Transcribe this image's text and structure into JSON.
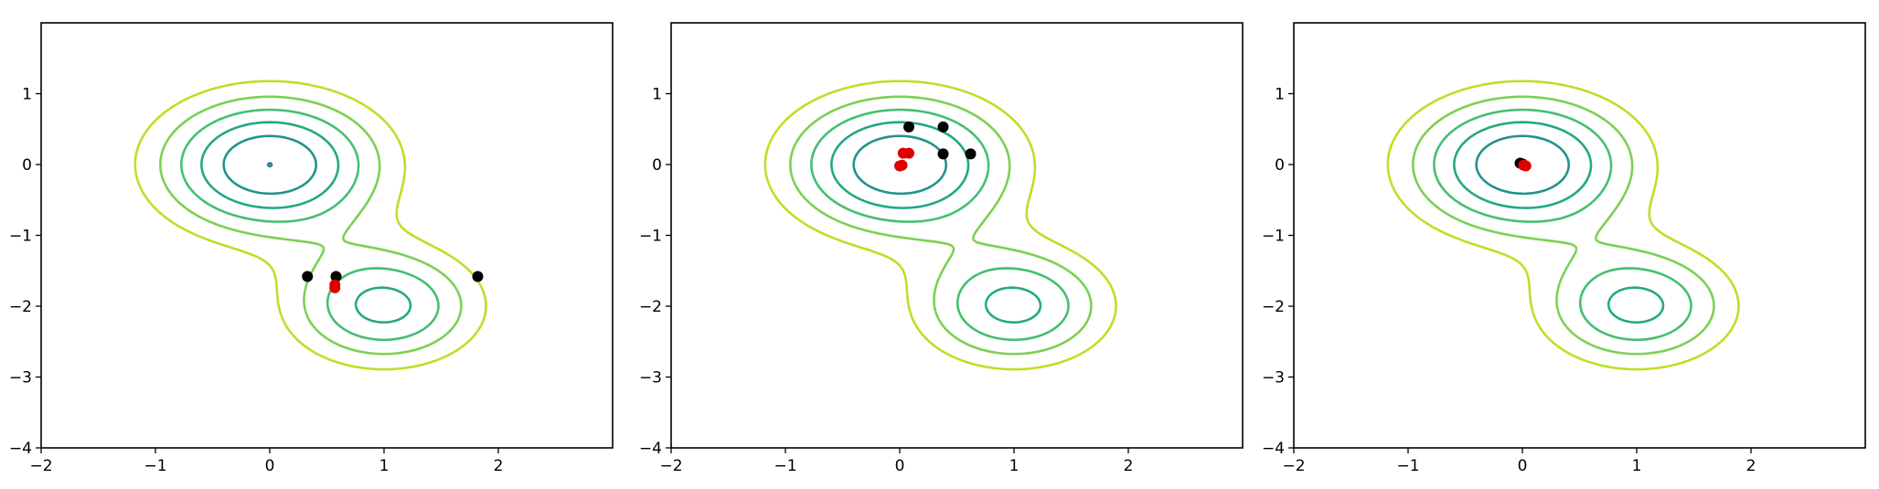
{
  "chart_data": [
    {
      "type": "contour",
      "title": "",
      "xlabel": "",
      "ylabel": "",
      "xlim": [
        -2,
        3
      ],
      "ylim": [
        -4,
        2
      ],
      "x_ticks": [
        -2,
        -1,
        0,
        1,
        2
      ],
      "y_ticks": [
        -4,
        -3,
        -2,
        -1,
        0,
        1
      ],
      "grid": false,
      "black_points": [
        [
          0.33,
          -1.58
        ],
        [
          0.58,
          -1.58
        ],
        [
          1.82,
          -1.58
        ]
      ],
      "red_points": [
        [
          0.57,
          -1.7
        ],
        [
          0.57,
          -1.74
        ]
      ]
    },
    {
      "type": "contour",
      "title": "",
      "xlabel": "",
      "ylabel": "",
      "xlim": [
        -2,
        3
      ],
      "ylim": [
        -4,
        2
      ],
      "x_ticks": [
        -2,
        -1,
        0,
        1,
        2
      ],
      "y_ticks": [
        -4,
        -3,
        -2,
        -1,
        0,
        1
      ],
      "grid": false,
      "black_points": [
        [
          0.08,
          0.53
        ],
        [
          0.38,
          0.53
        ],
        [
          0.62,
          0.15
        ],
        [
          0.38,
          0.15
        ]
      ],
      "red_points": [
        [
          0.03,
          0.16
        ],
        [
          0.08,
          0.16
        ],
        [
          0.0,
          -0.02
        ],
        [
          0.02,
          -0.01
        ]
      ]
    },
    {
      "type": "contour",
      "title": "",
      "xlabel": "",
      "ylabel": "",
      "xlim": [
        -2,
        3
      ],
      "ylim": [
        -4,
        2
      ],
      "x_ticks": [
        -2,
        -1,
        0,
        1,
        2
      ],
      "y_ticks": [
        -4,
        -3,
        -2,
        -1,
        0,
        1
      ],
      "grid": false,
      "black_points": [
        [
          0.0,
          0.01
        ],
        [
          -0.02,
          0.02
        ]
      ],
      "red_points": [
        [
          0.01,
          -0.01
        ],
        [
          0.03,
          -0.02
        ]
      ]
    }
  ],
  "function": {
    "gaussian_1": {
      "center": [
        0,
        0
      ],
      "weight": 1.0,
      "width": 1.0
    },
    "gaussian_2": {
      "center": [
        1,
        -2
      ],
      "weight": 0.75,
      "width": 0.85
    }
  },
  "contour_levels": [
    0.01,
    0.15,
    0.3,
    0.45,
    0.6,
    0.75,
    0.9,
    1.05,
    1.2,
    1.35
  ],
  "contour_colors": [
    "#440154",
    "#482475",
    "#414487",
    "#355f8d",
    "#2a788e",
    "#21918c",
    "#22a884",
    "#44bf70",
    "#7ad151",
    "#bddf26"
  ],
  "tick_text": {
    "x": [
      "−2",
      "−1",
      "0",
      "1",
      "2"
    ],
    "y": [
      "−4",
      "−3",
      "−2",
      "−1",
      "0",
      "1"
    ]
  }
}
